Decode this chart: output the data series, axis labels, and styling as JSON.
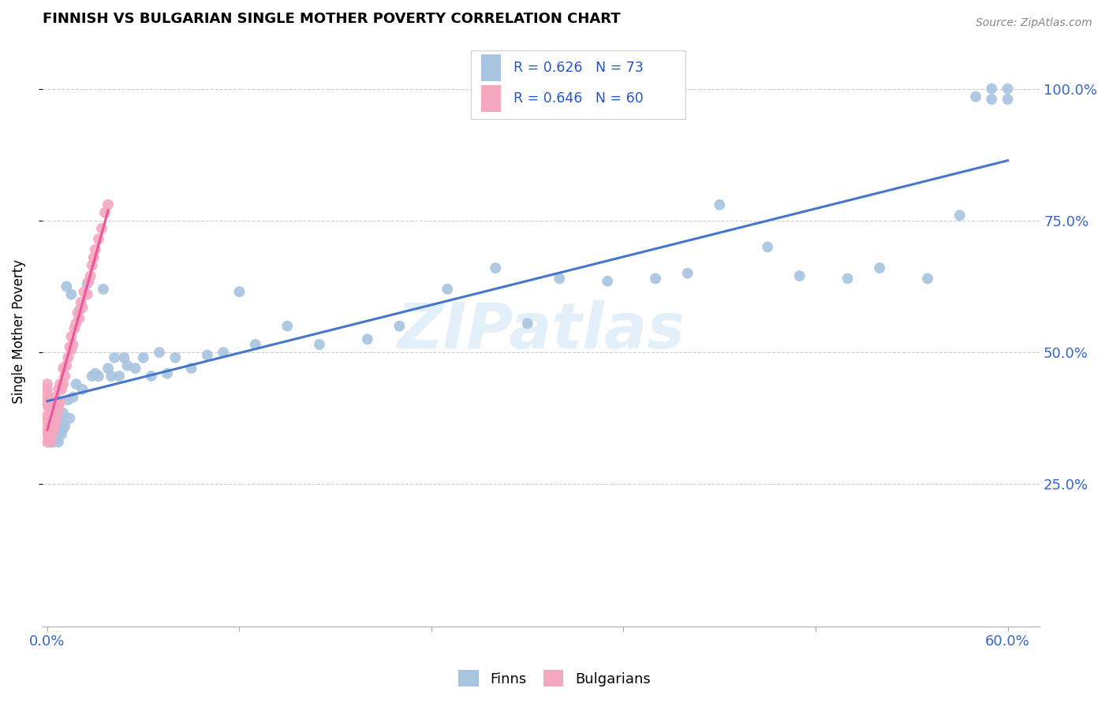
{
  "title": "FINNISH VS BULGARIAN SINGLE MOTHER POVERTY CORRELATION CHART",
  "source": "Source: ZipAtlas.com",
  "ylabel": "Single Mother Poverty",
  "legend_labels": [
    "Finns",
    "Bulgarians"
  ],
  "legend_r_finns": "R = 0.626",
  "legend_n_finns": "N = 73",
  "legend_r_bulgarians": "R = 0.646",
  "legend_n_bulgarians": "N = 60",
  "color_finns": "#a8c4e0",
  "color_bulgarians": "#f4a8c0",
  "trendline_finns": "#4477cc",
  "trendline_bulgarians": "#ee5599",
  "watermark": "ZIPatlas",
  "finns_x": [
    0.001,
    0.001,
    0.002,
    0.003,
    0.003,
    0.004,
    0.004,
    0.005,
    0.005,
    0.006,
    0.006,
    0.007,
    0.007,
    0.008,
    0.008,
    0.009,
    0.009,
    0.01,
    0.01,
    0.011,
    0.012,
    0.013,
    0.014,
    0.015,
    0.016,
    0.018,
    0.02,
    0.022,
    0.025,
    0.028,
    0.03,
    0.032,
    0.035,
    0.038,
    0.04,
    0.042,
    0.045,
    0.048,
    0.05,
    0.055,
    0.06,
    0.065,
    0.07,
    0.075,
    0.08,
    0.09,
    0.1,
    0.11,
    0.12,
    0.13,
    0.15,
    0.17,
    0.2,
    0.22,
    0.25,
    0.28,
    0.3,
    0.32,
    0.35,
    0.38,
    0.4,
    0.42,
    0.45,
    0.47,
    0.5,
    0.52,
    0.55,
    0.57,
    0.58,
    0.59,
    0.59,
    0.6,
    0.6
  ],
  "finns_y": [
    0.335,
    0.365,
    0.33,
    0.345,
    0.375,
    0.33,
    0.36,
    0.34,
    0.37,
    0.335,
    0.36,
    0.345,
    0.33,
    0.355,
    0.38,
    0.345,
    0.37,
    0.355,
    0.385,
    0.36,
    0.625,
    0.41,
    0.375,
    0.61,
    0.415,
    0.44,
    0.58,
    0.43,
    0.63,
    0.455,
    0.46,
    0.455,
    0.62,
    0.47,
    0.455,
    0.49,
    0.455,
    0.49,
    0.475,
    0.47,
    0.49,
    0.455,
    0.5,
    0.46,
    0.49,
    0.47,
    0.495,
    0.5,
    0.615,
    0.515,
    0.55,
    0.515,
    0.525,
    0.55,
    0.62,
    0.66,
    0.555,
    0.64,
    0.635,
    0.64,
    0.65,
    0.78,
    0.7,
    0.645,
    0.64,
    0.66,
    0.64,
    0.76,
    0.985,
    0.98,
    1.0,
    0.98,
    1.0
  ],
  "bulgarians_x": [
    0.0,
    0.0,
    0.0,
    0.0,
    0.0,
    0.0,
    0.0,
    0.0,
    0.0,
    0.0,
    0.001,
    0.001,
    0.001,
    0.001,
    0.002,
    0.002,
    0.002,
    0.002,
    0.003,
    0.003,
    0.003,
    0.004,
    0.004,
    0.004,
    0.005,
    0.005,
    0.005,
    0.006,
    0.006,
    0.007,
    0.007,
    0.008,
    0.008,
    0.009,
    0.01,
    0.01,
    0.011,
    0.012,
    0.013,
    0.014,
    0.015,
    0.015,
    0.016,
    0.017,
    0.018,
    0.019,
    0.02,
    0.021,
    0.022,
    0.023,
    0.025,
    0.026,
    0.027,
    0.028,
    0.029,
    0.03,
    0.032,
    0.034,
    0.036,
    0.038
  ],
  "bulgarians_y": [
    0.33,
    0.345,
    0.355,
    0.37,
    0.38,
    0.4,
    0.41,
    0.42,
    0.43,
    0.44,
    0.335,
    0.35,
    0.375,
    0.395,
    0.33,
    0.345,
    0.37,
    0.4,
    0.345,
    0.36,
    0.39,
    0.355,
    0.375,
    0.4,
    0.365,
    0.39,
    0.415,
    0.38,
    0.41,
    0.395,
    0.43,
    0.405,
    0.44,
    0.43,
    0.44,
    0.47,
    0.455,
    0.475,
    0.49,
    0.51,
    0.505,
    0.53,
    0.515,
    0.545,
    0.555,
    0.575,
    0.565,
    0.595,
    0.585,
    0.615,
    0.61,
    0.635,
    0.645,
    0.665,
    0.68,
    0.695,
    0.715,
    0.735,
    0.765,
    0.78
  ],
  "xlim": [
    -0.003,
    0.62
  ],
  "ylim": [
    -0.02,
    1.1
  ],
  "xticks": [
    0.0,
    0.12,
    0.24,
    0.36,
    0.48,
    0.6
  ],
  "yticks": [
    0.25,
    0.5,
    0.75,
    1.0
  ],
  "ytick_labels": [
    "25.0%",
    "50.0%",
    "75.0%",
    "100.0%"
  ]
}
